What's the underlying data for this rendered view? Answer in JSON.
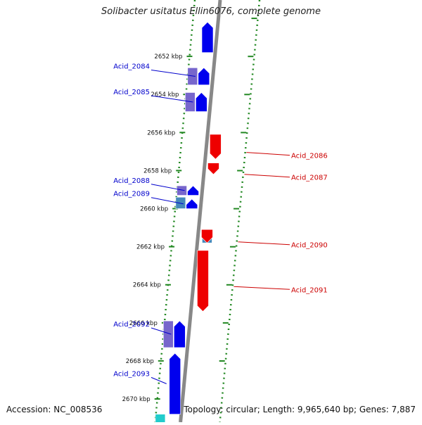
{
  "title": "Solibacter usitatus Ellin6076, complete genome",
  "footer": {
    "accession": "Accession: NC_008536",
    "summary": "Topology: circular; Length: 9,965,640 bp; Genes: 7,887"
  },
  "colors": {
    "forward_gene": "#0000ee",
    "reverse_gene": "#ee0000",
    "homolog_block": "#7766cc",
    "steelblue_block": "#4488bb",
    "cyan_block": "#22cccc",
    "dotted_track": "#228822",
    "axis": "#888888",
    "forward_label": "#0000cc",
    "reverse_label": "#cc0000"
  },
  "axis": {
    "kbp_labels": [
      {
        "label": "2652 kbp",
        "kbp": 2652
      },
      {
        "label": "2654 kbp",
        "kbp": 2654
      },
      {
        "label": "2656 kbp",
        "kbp": 2656
      },
      {
        "label": "2658 kbp",
        "kbp": 2658
      },
      {
        "label": "2660 kbp",
        "kbp": 2660
      },
      {
        "label": "2662 kbp",
        "kbp": 2662
      },
      {
        "label": "2664 kbp",
        "kbp": 2664
      },
      {
        "label": "2666 kbp",
        "kbp": 2666
      },
      {
        "label": "2668 kbp",
        "kbp": 2668
      },
      {
        "label": "2670 kbp",
        "kbp": 2670
      }
    ]
  },
  "genes": [
    {
      "name": "",
      "strand": "+",
      "start_kbp": 2650.2,
      "end_kbp": 2651.8
    },
    {
      "name": "Acid_2084",
      "strand": "+",
      "start_kbp": 2652.6,
      "end_kbp": 2653.5
    },
    {
      "name": "Acid_2085",
      "strand": "+",
      "start_kbp": 2653.9,
      "end_kbp": 2654.9
    },
    {
      "name": "Acid_2086",
      "strand": "-",
      "start_kbp": 2656.1,
      "end_kbp": 2657.4
    },
    {
      "name": "Acid_2087",
      "strand": "-",
      "start_kbp": 2657.6,
      "end_kbp": 2658.2
    },
    {
      "name": "Acid_2088",
      "strand": "+",
      "start_kbp": 2658.8,
      "end_kbp": 2659.3
    },
    {
      "name": "Acid_2089",
      "strand": "+",
      "start_kbp": 2659.5,
      "end_kbp": 2660.0
    },
    {
      "name": "Acid_2090",
      "strand": "-",
      "start_kbp": 2661.1,
      "end_kbp": 2661.8
    },
    {
      "name": "Acid_2091",
      "strand": "-",
      "start_kbp": 2662.2,
      "end_kbp": 2665.4
    },
    {
      "name": "Acid_2092",
      "strand": "+",
      "start_kbp": 2665.9,
      "end_kbp": 2667.3
    },
    {
      "name": "Acid_2093",
      "strand": "+",
      "start_kbp": 2667.6,
      "end_kbp": 2670.8
    }
  ],
  "homolog_blocks": [
    {
      "color": "homolog_block",
      "start_kbp": 2652.6,
      "end_kbp": 2653.5,
      "side": "left"
    },
    {
      "color": "homolog_block",
      "start_kbp": 2653.9,
      "end_kbp": 2654.9,
      "side": "left"
    },
    {
      "color": "homolog_block",
      "start_kbp": 2658.8,
      "end_kbp": 2659.3,
      "side": "left"
    },
    {
      "color": "steelblue_block",
      "start_kbp": 2659.4,
      "end_kbp": 2660.0,
      "side": "left"
    },
    {
      "color": "steelblue_block",
      "start_kbp": 2661.1,
      "end_kbp": 2661.8,
      "side": "right"
    },
    {
      "color": "homolog_block",
      "start_kbp": 2665.9,
      "end_kbp": 2667.3,
      "side": "left"
    },
    {
      "color": "cyan_block",
      "start_kbp": 2670.8,
      "end_kbp": 2671.4,
      "side": "left"
    }
  ]
}
